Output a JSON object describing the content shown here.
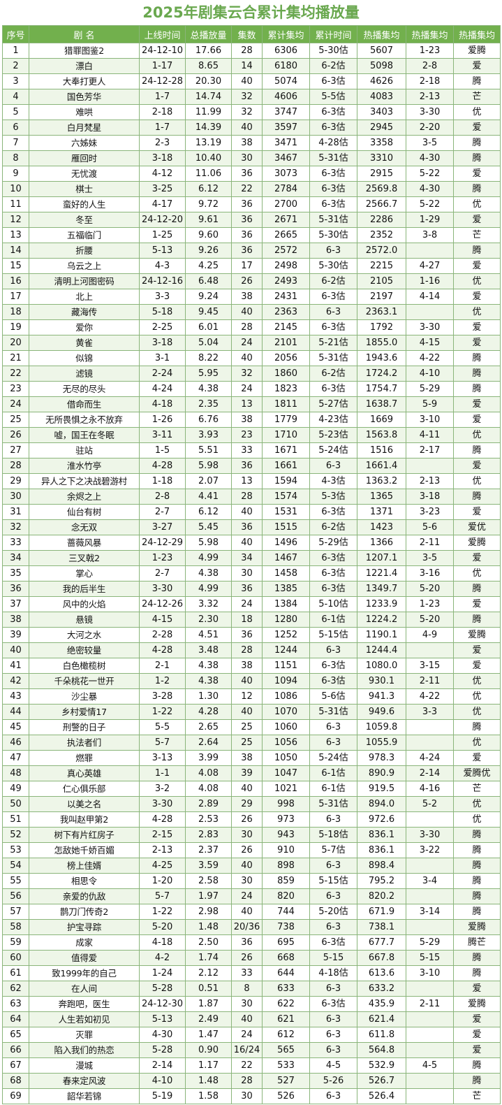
{
  "title": "2025年剧集云合累计集均播放量",
  "headers": [
    "序号",
    "剧 名",
    "上线时间",
    "总播放量",
    "集数",
    "累计集均",
    "累计时间",
    "热播集均",
    "热播集均",
    "热播集均"
  ],
  "rows": [
    [
      "1",
      "猎罪图鉴2",
      "24-12-10",
      "17.66",
      "28",
      "6306",
      "5-30估",
      "5607",
      "1-23",
      "爱腾"
    ],
    [
      "2",
      "漂白",
      "1-17",
      "8.65",
      "14",
      "6180",
      "6-2估",
      "5098",
      "2-8",
      "爱"
    ],
    [
      "3",
      "大奉打更人",
      "24-12-28",
      "20.30",
      "40",
      "5074",
      "6-3估",
      "4626",
      "2-18",
      "腾"
    ],
    [
      "4",
      "国色芳华",
      "1-7",
      "14.74",
      "32",
      "4606",
      "5-5估",
      "4083",
      "2-13",
      "芒"
    ],
    [
      "5",
      "难哄",
      "2-18",
      "11.99",
      "32",
      "3747",
      "6-3估",
      "3403",
      "3-30",
      "优"
    ],
    [
      "6",
      "白月梵星",
      "1-7",
      "14.39",
      "40",
      "3597",
      "6-3估",
      "2945",
      "2-20",
      "爱"
    ],
    [
      "7",
      "六姊妹",
      "2-3",
      "13.19",
      "38",
      "3471",
      "4-28估",
      "3358",
      "3-5",
      "腾"
    ],
    [
      "8",
      "雁回时",
      "3-18",
      "10.40",
      "30",
      "3467",
      "5-31估",
      "3310",
      "4-30",
      "腾"
    ],
    [
      "9",
      "无忧渡",
      "4-12",
      "11.06",
      "36",
      "3073",
      "6-3估",
      "2915",
      "5-22",
      "爱"
    ],
    [
      "10",
      "棋士",
      "3-25",
      "6.12",
      "22",
      "2784",
      "6-3估",
      "2569.8",
      "4-30",
      "腾"
    ],
    [
      "11",
      "蛮好的人生",
      "4-17",
      "9.72",
      "36",
      "2700",
      "6-3估",
      "2566.7",
      "5-22",
      "优"
    ],
    [
      "12",
      "冬至",
      "24-12-20",
      "9.61",
      "36",
      "2671",
      "5-31估",
      "2286",
      "1-29",
      "爱"
    ],
    [
      "13",
      "五福临门",
      "1-25",
      "9.60",
      "36",
      "2665",
      "5-30估",
      "2352",
      "3-8",
      "芒"
    ],
    [
      "14",
      "折腰",
      "5-13",
      "9.26",
      "36",
      "2572",
      "6-3",
      "2572.0",
      "",
      "腾"
    ],
    [
      "15",
      "乌云之上",
      "4-3",
      "4.25",
      "17",
      "2498",
      "5-30估",
      "2215",
      "4-27",
      "爱"
    ],
    [
      "16",
      "清明上河图密码",
      "24-12-16",
      "6.48",
      "26",
      "2493",
      "6-2估",
      "2105",
      "1-16",
      "优"
    ],
    [
      "17",
      "北上",
      "3-3",
      "9.24",
      "38",
      "2431",
      "6-3估",
      "2197",
      "4-14",
      "爱"
    ],
    [
      "18",
      "藏海传",
      "5-18",
      "9.45",
      "40",
      "2363",
      "6-3",
      "2363.1",
      "",
      "优"
    ],
    [
      "19",
      "爱你",
      "2-25",
      "6.01",
      "28",
      "2145",
      "6-3估",
      "1792",
      "3-30",
      "爱"
    ],
    [
      "20",
      "黄雀",
      "3-18",
      "5.04",
      "24",
      "2101",
      "5-21估",
      "1855.0",
      "4-15",
      "爱"
    ],
    [
      "21",
      "似锦",
      "3-1",
      "8.22",
      "40",
      "2056",
      "5-31估",
      "1943.6",
      "4-22",
      "腾"
    ],
    [
      "22",
      "滤镜",
      "2-24",
      "5.95",
      "32",
      "1860",
      "6-2估",
      "1724.2",
      "4-10",
      "腾"
    ],
    [
      "23",
      "无尽的尽头",
      "4-24",
      "4.38",
      "24",
      "1823",
      "6-3估",
      "1754.7",
      "5-29",
      "腾"
    ],
    [
      "24",
      "借命而生",
      "4-18",
      "2.35",
      "13",
      "1811",
      "5-27估",
      "1638.7",
      "5-9",
      "爱"
    ],
    [
      "25",
      "无所畏惧之永不放弃",
      "1-26",
      "6.76",
      "38",
      "1779",
      "4-23估",
      "1669",
      "3-10",
      "爱"
    ],
    [
      "26",
      "嘘，国王在冬眠",
      "3-11",
      "3.93",
      "23",
      "1710",
      "5-23估",
      "1563.8",
      "4-11",
      "优"
    ],
    [
      "27",
      "驻站",
      "1-5",
      "5.51",
      "33",
      "1671",
      "5-24估",
      "1516",
      "2-17",
      "腾"
    ],
    [
      "28",
      "淮水竹亭",
      "4-28",
      "5.98",
      "36",
      "1661",
      "6-3",
      "1661.4",
      "",
      "爱"
    ],
    [
      "29",
      "异人之下之决战碧游村",
      "1-18",
      "2.07",
      "13",
      "1594",
      "4-3估",
      "1363.2",
      "2-13",
      "优"
    ],
    [
      "30",
      "余烬之上",
      "2-8",
      "4.41",
      "28",
      "1574",
      "5-3估",
      "1365",
      "3-18",
      "腾"
    ],
    [
      "31",
      "仙台有树",
      "2-7",
      "6.12",
      "40",
      "1531",
      "6-3估",
      "1371",
      "3-23",
      "爱"
    ],
    [
      "32",
      "念无双",
      "3-27",
      "5.45",
      "36",
      "1515",
      "6-2估",
      "1423",
      "5-6",
      "爱优"
    ],
    [
      "33",
      "蔷薇风暴",
      "24-12-29",
      "5.98",
      "40",
      "1496",
      "5-29估",
      "1366",
      "2-11",
      "爱腾"
    ],
    [
      "34",
      "三叉戟2",
      "1-23",
      "4.99",
      "34",
      "1467",
      "6-3估",
      "1207.1",
      "3-5",
      "爱"
    ],
    [
      "35",
      "掌心",
      "2-7",
      "4.38",
      "30",
      "1458",
      "6-3估",
      "1221.4",
      "3-16",
      "优"
    ],
    [
      "36",
      "我的后半生",
      "3-30",
      "4.99",
      "36",
      "1385",
      "6-3估",
      "1349.7",
      "5-20",
      "腾"
    ],
    [
      "37",
      "风中的火焰",
      "24-12-26",
      "3.32",
      "24",
      "1384",
      "5-10估",
      "1233.9",
      "1-23",
      "爱"
    ],
    [
      "38",
      "悬镜",
      "4-15",
      "2.30",
      "18",
      "1280",
      "6-1估",
      "1224.2",
      "5-20",
      "腾"
    ],
    [
      "39",
      "大河之水",
      "2-28",
      "4.51",
      "36",
      "1252",
      "5-15估",
      "1190.1",
      "4-9",
      "爱腾"
    ],
    [
      "40",
      "绝密较量",
      "4-28",
      "3.48",
      "28",
      "1244",
      "6-3",
      "1244.4",
      "",
      "爱"
    ],
    [
      "41",
      "白色橄榄树",
      "2-1",
      "4.38",
      "38",
      "1151",
      "6-3估",
      "1080.0",
      "3-15",
      "爱"
    ],
    [
      "42",
      "千朵桃花一世开",
      "1-2",
      "4.38",
      "40",
      "1094",
      "6-3估",
      "930.1",
      "2-11",
      "优"
    ],
    [
      "43",
      "沙尘暴",
      "3-28",
      "1.30",
      "12",
      "1086",
      "5-6估",
      "941.3",
      "4-22",
      "优"
    ],
    [
      "44",
      "乡村爱情17",
      "1-22",
      "4.28",
      "40",
      "1070",
      "5-31估",
      "949.6",
      "3-3",
      "优"
    ],
    [
      "45",
      "刑警的日子",
      "5-5",
      "2.65",
      "25",
      "1060",
      "6-3",
      "1059.8",
      "",
      "腾"
    ],
    [
      "46",
      "执法者们",
      "5-7",
      "2.64",
      "25",
      "1056",
      "6-3",
      "1055.9",
      "",
      "优"
    ],
    [
      "47",
      "燃罪",
      "3-13",
      "3.99",
      "38",
      "1050",
      "5-24估",
      "978.3",
      "4-24",
      "爱"
    ],
    [
      "48",
      "真心英雄",
      "1-1",
      "4.08",
      "39",
      "1047",
      "6-1估",
      "890.9",
      "2-14",
      "爱腾优"
    ],
    [
      "49",
      "仁心俱乐部",
      "3-2",
      "4.08",
      "40",
      "1021",
      "6-1估",
      "919.5",
      "4-16",
      "芒"
    ],
    [
      "50",
      "以美之名",
      "3-30",
      "2.89",
      "29",
      "998",
      "5-31估",
      "894.0",
      "5-2",
      "优"
    ],
    [
      "51",
      "我叫赵甲第2",
      "4-28",
      "2.53",
      "26",
      "973",
      "6-3",
      "972.6",
      "",
      "优"
    ],
    [
      "52",
      "树下有片红房子",
      "2-15",
      "2.83",
      "30",
      "943",
      "5-18估",
      "836.1",
      "3-30",
      "腾"
    ],
    [
      "53",
      "怎敌她千娇百媚",
      "2-13",
      "2.37",
      "26",
      "910",
      "5-7估",
      "836.1",
      "3-22",
      "腾"
    ],
    [
      "54",
      "榜上佳婿",
      "4-25",
      "3.59",
      "40",
      "898",
      "6-3",
      "898.4",
      "",
      "腾"
    ],
    [
      "55",
      "相思令",
      "1-20",
      "2.58",
      "30",
      "859",
      "5-15估",
      "795.2",
      "3-4",
      "腾"
    ],
    [
      "56",
      "亲爱的仇敌",
      "5-7",
      "1.97",
      "24",
      "820",
      "6-3",
      "820.2",
      "",
      "腾"
    ],
    [
      "57",
      "鹊刀门传奇2",
      "1-22",
      "2.98",
      "40",
      "744",
      "5-20估",
      "671.9",
      "3-14",
      "腾"
    ],
    [
      "58",
      "护宝寻踪",
      "5-20",
      "1.48",
      "20/36",
      "738",
      "6-3",
      "738.1",
      "",
      "爱腾"
    ],
    [
      "59",
      "成家",
      "4-18",
      "2.50",
      "36",
      "695",
      "6-3估",
      "677.7",
      "5-29",
      "腾芒"
    ],
    [
      "60",
      "值得爱",
      "4-2",
      "1.74",
      "26",
      "668",
      "5-15",
      "667.8",
      "5-15",
      "腾"
    ],
    [
      "61",
      "致1999年的自己",
      "1-24",
      "2.12",
      "33",
      "644",
      "4-18估",
      "613.6",
      "3-10",
      "腾"
    ],
    [
      "62",
      "在人间",
      "5-28",
      "0.51",
      "8",
      "633",
      "6-3",
      "633.2",
      "",
      "爱"
    ],
    [
      "63",
      "奔跑吧，医生",
      "24-12-30",
      "1.87",
      "30",
      "622",
      "6-3估",
      "435.9",
      "2-11",
      "爱腾"
    ],
    [
      "64",
      "人生若如初见",
      "5-13",
      "2.49",
      "40",
      "621",
      "6-3",
      "621.4",
      "",
      "爱"
    ],
    [
      "65",
      "灭罪",
      "4-30",
      "1.47",
      "24",
      "612",
      "6-3",
      "611.8",
      "",
      "爱"
    ],
    [
      "66",
      "陷入我们的热恋",
      "5-28",
      "0.90",
      "16/24",
      "565",
      "6-3",
      "564.8",
      "",
      "爱"
    ],
    [
      "67",
      "漫城",
      "2-14",
      "1.17",
      "22",
      "533",
      "4-5",
      "532.9",
      "4-5",
      "腾"
    ],
    [
      "68",
      "春来定风波",
      "4-10",
      "1.48",
      "28",
      "527",
      "5-26",
      "526.7",
      "",
      "腾"
    ],
    [
      "69",
      "韶华若锦",
      "5-19",
      "1.58",
      "30",
      "526",
      "6-3",
      "526.4",
      "",
      "芒"
    ]
  ]
}
